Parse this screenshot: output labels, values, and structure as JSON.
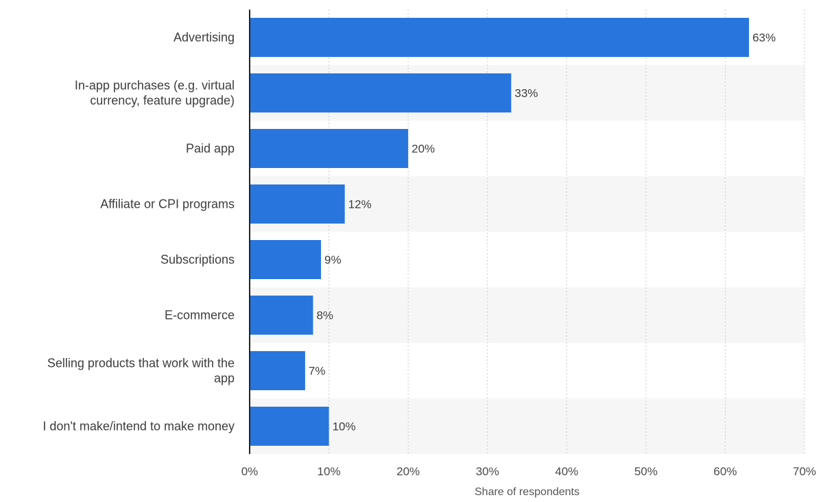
{
  "chart_data": {
    "type": "bar",
    "orientation": "horizontal",
    "categories": [
      [
        "Advertising"
      ],
      [
        "In-app purchases (e.g. virtual",
        "currency, feature upgrade)"
      ],
      [
        "Paid app"
      ],
      [
        "Affiliate or CPI programs"
      ],
      [
        "Subscriptions"
      ],
      [
        "E-commerce"
      ],
      [
        "Selling products that work with the",
        "app"
      ],
      [
        "I don't make/intend to make money"
      ]
    ],
    "values": [
      63,
      33,
      20,
      12,
      9,
      8,
      7,
      10
    ],
    "value_labels": [
      "63%",
      "33%",
      "20%",
      "12%",
      "9%",
      "8%",
      "7%",
      "10%"
    ],
    "xlabel": "Share of respondents",
    "xlim": [
      0,
      70
    ],
    "x_ticks": [
      0,
      10,
      20,
      30,
      40,
      50,
      60,
      70
    ],
    "x_tick_labels": [
      "0%",
      "10%",
      "20%",
      "30%",
      "40%",
      "50%",
      "60%",
      "70%"
    ],
    "grid": "vertical-dotted",
    "legend": "none",
    "colors": {
      "bar": "#2876dd",
      "band": "#f6f6f6",
      "grid": "#c8c8c8",
      "axis": "#222222"
    }
  }
}
